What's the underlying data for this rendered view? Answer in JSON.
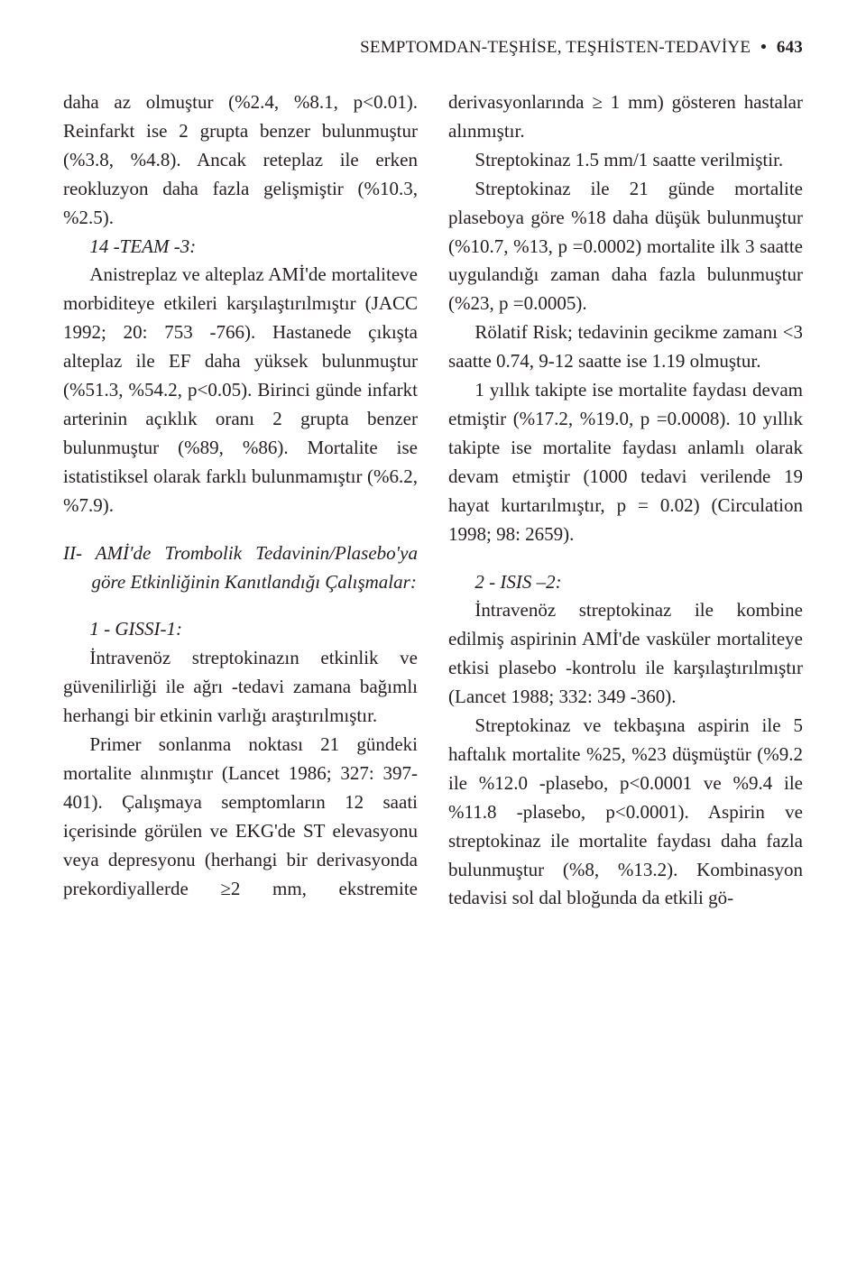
{
  "header": {
    "title": "SEMPTOMDAN-TEŞHİSE, TEŞHİSTEN-TEDAVİYE",
    "separator": "•",
    "page_number": "643"
  },
  "body": {
    "p1": "daha az olmuştur (%2.4, %8.1, p<0.01). Reinfarkt ise 2 grupta benzer bulunmuştur (%3.8, %4.8). Ancak reteplaz ile erken reokluzyon daha fazla gelişmiştir (%10.3, %2.5).",
    "p2_head": "14 -TEAM -3:",
    "p2": "Anistreplaz ve alteplaz AMİ'de mortaliteve morbiditeye etkileri karşılaştırılmıştır (JACC 1992; 20: 753 -766). Hastanede çıkışta alteplaz ile EF daha yüksek bulunmuştur (%51.3, %54.2, p<0.05). Birinci günde infarkt arterinin açıklık oranı 2 grupta benzer bulunmuştur (%89, %86). Mortalite ise istatistiksel olarak farklı bulunmamıştır (%6.2, %7.9).",
    "p3_hanging": "II- AMİ'de Trombolik Tedavinin/Plasebo'ya göre Etkinliğinin Kanıtlandığı Çalışmalar:",
    "p4_head": "1 - GISSI-1:",
    "p4": "İntravenöz streptokinazın etkinlik ve güvenilirliği ile ağrı -tedavi zamana bağımlı herhangi bir etkinin varlığı araştırılmıştır.",
    "p5": "Primer sonlanma noktası 21 gündeki mortalite alınmıştır (Lancet 1986; 327: 397-401). Çalışmaya semptomların 12 saati içerisinde görülen ve EKG'de ST elevasyonu veya depresyonu (herhangi bir derivasyonda prekordiyallerde ≥2 mm, ekstremite derivasyonlarında ≥ 1 mm) gösteren hastalar alınmıştır.",
    "p6": "Streptokinaz 1.5 mm/1 saatte verilmiştir.",
    "p7": "Streptokinaz ile 21 günde mortalite plaseboya göre %18 daha düşük bulunmuştur (%10.7, %13, p =0.0002) mortalite ilk 3 saatte uygulandığı zaman daha fazla bulunmuştur (%23, p =0.0005).",
    "p8": "Rölatif Risk; tedavinin gecikme zamanı <3 saatte 0.74, 9-12 saatte ise 1.19 olmuştur.",
    "p9": "1 yıllık takipte ise mortalite faydası devam etmiştir (%17.2, %19.0, p =0.0008). 10 yıllık takipte ise mortalite faydası anlamlı olarak devam etmiştir (1000 tedavi verilende 19 hayat kurtarılmıştır, p = 0.02) (Circulation 1998; 98: 2659).",
    "p10_head": "2 - ISIS –2:",
    "p10": "İntravenöz streptokinaz ile kombine edilmiş aspirinin AMİ'de vasküler mortaliteye etkisi plasebo -kontrolu ile karşılaştırılmıştır (Lancet 1988; 332: 349 -360).",
    "p11": "Streptokinaz ve tekbaşına aspirin ile 5 haftalık mortalite %25, %23 düşmüştür (%9.2 ile %12.0 -plasebo, p<0.0001 ve %9.4 ile %11.8 -plasebo, p<0.0001). Aspirin ve streptokinaz ile mortalite faydası daha fazla bulunmuştur (%8, %13.2). Kombinasyon tedavisi sol dal bloğunda da etkili gö-"
  }
}
